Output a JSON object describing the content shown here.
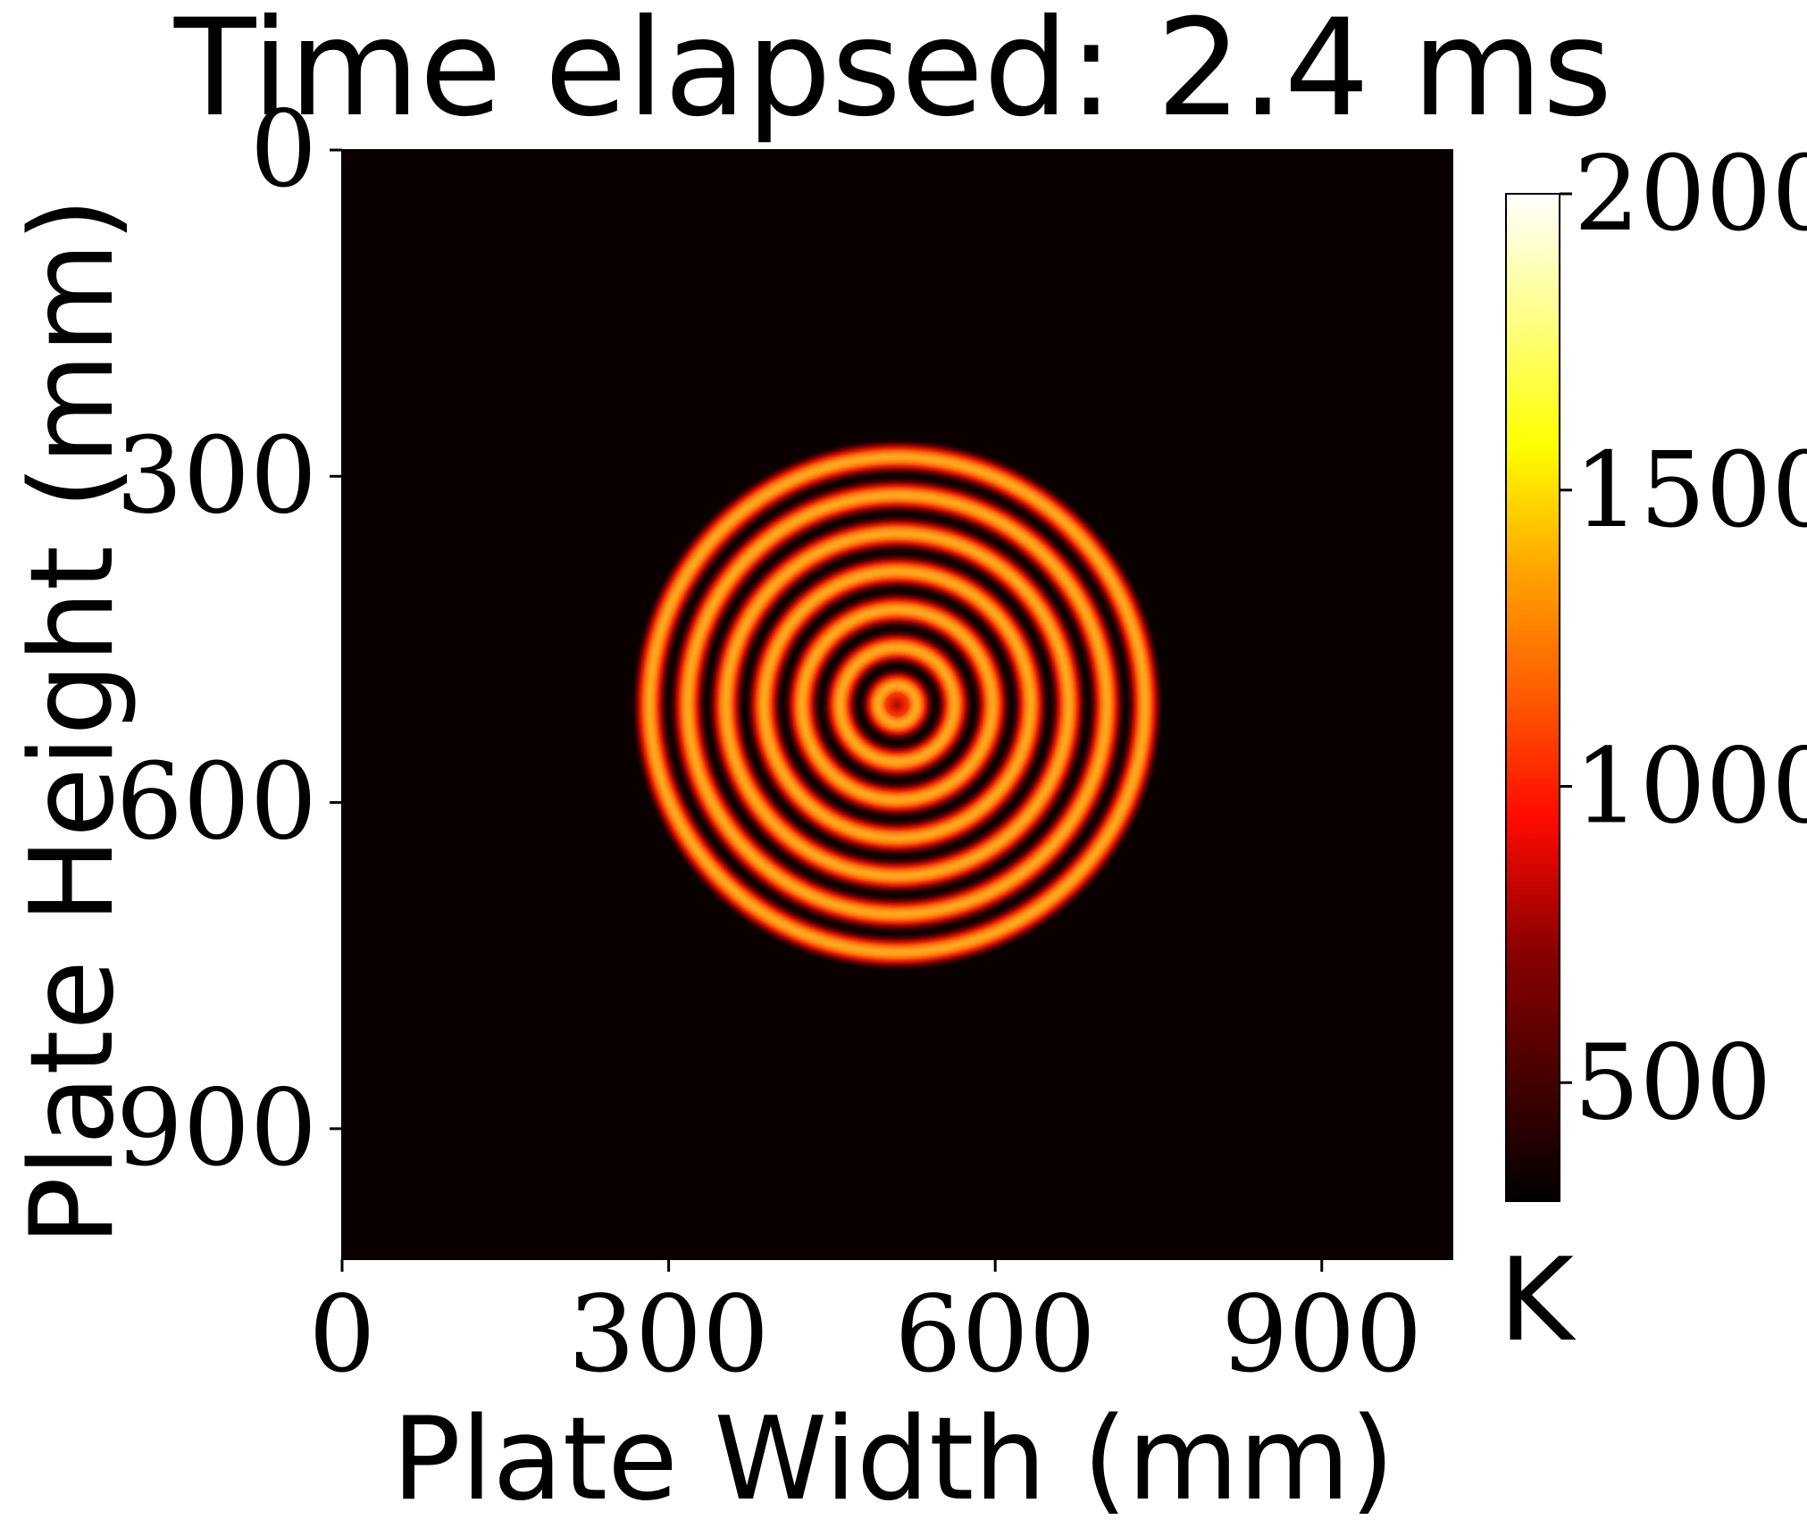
{
  "chart_data": {
    "type": "heatmap",
    "title": "Time elapsed: 2.4 ms",
    "xlabel": "Plate Width (mm)",
    "ylabel": "Plate Height (mm)",
    "xlim": [
      0,
      1020
    ],
    "ylim": [
      1020,
      0
    ],
    "x_ticks": [
      "0",
      "300",
      "600",
      "900"
    ],
    "y_ticks": [
      "0",
      "300",
      "600",
      "900"
    ],
    "x_tick_values": [
      0,
      300,
      600,
      900
    ],
    "y_tick_values": [
      0,
      300,
      600,
      900
    ],
    "colormap": "hot",
    "colorbar": {
      "label": "K",
      "ticks": [
        "500",
        "1000",
        "1500",
        "2000"
      ],
      "tick_values": [
        500,
        1000,
        1500,
        2000
      ],
      "range": [
        300,
        2000
      ]
    },
    "background_value": 300,
    "rings": {
      "center": [
        510,
        510
      ],
      "outer_radius": 245,
      "count": 7,
      "peak_value": 1450
    },
    "grid": false
  },
  "colors": {
    "background": "#0b0000",
    "ring_peak": "#ffa21a",
    "ring_edge": "#e51d00",
    "axes": "#000000"
  }
}
